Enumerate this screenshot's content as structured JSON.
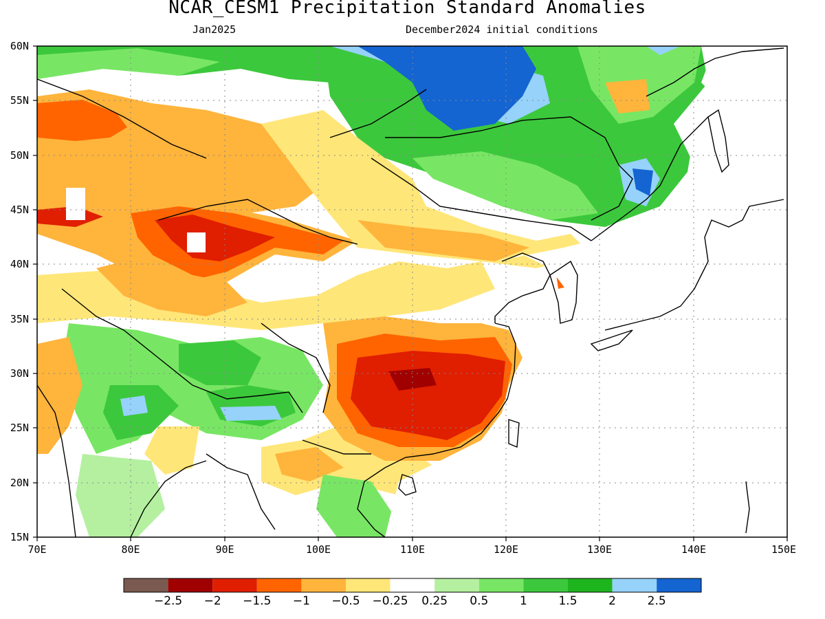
{
  "title": "NCAR_CESM1 Precipitation Standard Anomalies",
  "subtitle_left": "Jan2025",
  "subtitle_right": "December2024 initial conditions",
  "map": {
    "lon_range": [
      70,
      150
    ],
    "lat_range": [
      15,
      60
    ],
    "lat_ticks": [
      "60N",
      "55N",
      "50N",
      "45N",
      "40N",
      "35N",
      "30N",
      "25N",
      "20N",
      "15N"
    ],
    "lon_ticks": [
      "70E",
      "80E",
      "90E",
      "100E",
      "110E",
      "120E",
      "130E",
      "140E",
      "150E"
    ],
    "grid": true
  },
  "colorbar": {
    "colors": [
      "#7a5a50",
      "#a00000",
      "#e01e00",
      "#ff6400",
      "#ffb43c",
      "#ffe678",
      "#ffffff",
      "#b4f0a0",
      "#78e664",
      "#3cc83c",
      "#1eb41e",
      "#96d2fa",
      "#1464d2"
    ],
    "labels": [
      "-2.5",
      "-2",
      "-1.5",
      "-1",
      "-0.5",
      "-0.25",
      "0.25",
      "0.5",
      "1",
      "1.5",
      "2",
      "2.5"
    ]
  }
}
